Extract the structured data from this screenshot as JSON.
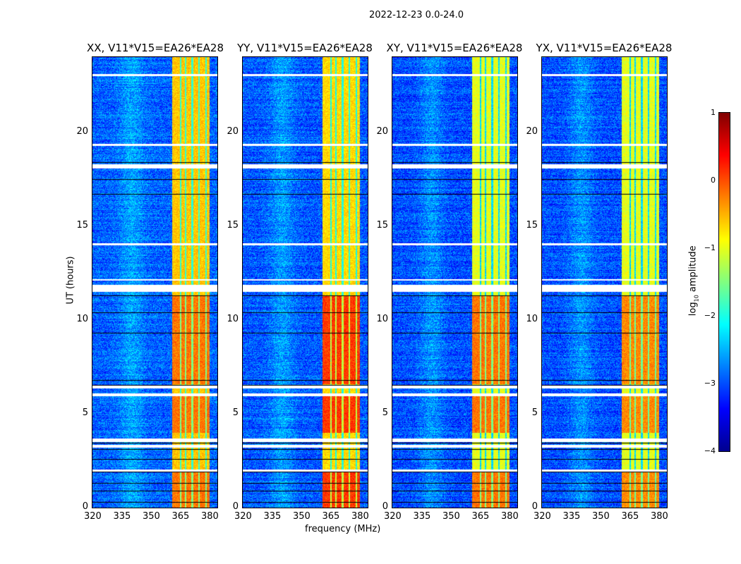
{
  "figure_title": "2022-12-23 0.0-24.0",
  "chart_data": {
    "type": "heatmap",
    "title": "2022-12-23 0.0-24.0",
    "xlabel": "frequency (MHz)",
    "ylabel": "UT (hours)",
    "xlim": [
      320,
      384
    ],
    "ylim": [
      0,
      24
    ],
    "xticks": [
      320,
      335,
      350,
      365,
      380
    ],
    "yticks": [
      0,
      5,
      10,
      15,
      20
    ],
    "colormap": "jet",
    "colorbar": {
      "label_prefix": "log",
      "label_sub": "10",
      "label_suffix": " amplitude",
      "range": [
        -4,
        1
      ],
      "ticks": [
        "1",
        "0",
        "−1",
        "−2",
        "−3",
        "−4"
      ]
    },
    "panels": [
      {
        "title": "XX, V11*V15=EA26*EA28",
        "background_log_amp": -2.9,
        "band_log_amp": -0.6,
        "band_peak_log_amp": 0.2
      },
      {
        "title": "YY, V11*V15=EA26*EA28",
        "background_log_amp": -2.95,
        "band_log_amp": -0.7,
        "band_peak_log_amp": 0.5
      },
      {
        "title": "XY, V11*V15=EA26*EA28",
        "background_log_amp": -3.0,
        "band_log_amp": -1.0,
        "band_peak_log_amp": 0.2
      },
      {
        "title": "YX, V11*V15=EA26*EA28",
        "background_log_amp": -3.0,
        "band_log_amp": -1.0,
        "band_peak_log_amp": 0.1
      }
    ],
    "rfi_band_mhz": [
      360.5,
      380
    ],
    "rfi_channel_gaps_mhz": [
      365,
      367.5,
      371,
      374.5,
      378
    ],
    "strong_rfi_ut_ranges": [
      [
        0,
        1.9
      ],
      [
        4.0,
        6.0
      ],
      [
        6.6,
        11.3
      ]
    ],
    "flagged_ut_ranges": [
      [
        1.95,
        2.05
      ],
      [
        3.2,
        3.35
      ],
      [
        3.5,
        3.7
      ],
      [
        5.95,
        6.1
      ],
      [
        6.35,
        6.5
      ],
      [
        11.5,
        11.9
      ],
      [
        12.1,
        12.2
      ],
      [
        14.0,
        14.1
      ],
      [
        18.1,
        18.3
      ],
      [
        19.3,
        19.4
      ],
      [
        23.0,
        23.1
      ]
    ],
    "black_ut_lines": [
      0.3,
      0.9,
      1.3,
      1.9,
      2.6,
      3.1,
      3.45,
      6.55,
      6.8,
      9.3,
      10.4,
      11.3,
      16.7,
      17.5,
      18.4
    ]
  }
}
